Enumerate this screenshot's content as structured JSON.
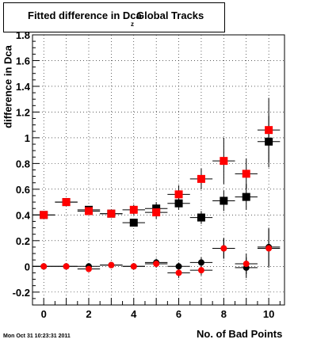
{
  "chart_data": {
    "type": "scatter",
    "title": "Fitted difference in Dca",
    "title_subscript": "z",
    "title_tail": "Global Tracks",
    "xlabel": "No. of Bad Points",
    "ylabel": "difference in Dca",
    "xlim": [
      -0.5,
      10.7
    ],
    "ylim": [
      -0.3,
      1.8
    ],
    "grid": true,
    "x_ticks": [
      0,
      2,
      4,
      6,
      8,
      10
    ],
    "y_ticks": [
      -0.2,
      0,
      0.2,
      0.4,
      0.6,
      0.8,
      1,
      1.2,
      1.4,
      1.6,
      1.8
    ],
    "y_tick_labels": [
      "-0.2",
      "0",
      "0.2",
      "0.4",
      "0.6",
      "0.8",
      "1",
      "1.2",
      "1.4",
      "1.6",
      "1.8"
    ],
    "series": [
      {
        "marker": "square",
        "color": "#000000",
        "points": [
          {
            "x": 0,
            "y": 0.4,
            "xerr": 0.5,
            "yerr": 0.02
          },
          {
            "x": 1,
            "y": 0.5,
            "xerr": 0.5,
            "yerr": 0.02
          },
          {
            "x": 2,
            "y": 0.44,
            "xerr": 0.5,
            "yerr": 0.02
          },
          {
            "x": 3,
            "y": 0.41,
            "xerr": 0.5,
            "yerr": 0.02
          },
          {
            "x": 4,
            "y": 0.34,
            "xerr": 0.5,
            "yerr": 0.03
          },
          {
            "x": 5,
            "y": 0.45,
            "xerr": 0.5,
            "yerr": 0.05
          },
          {
            "x": 6,
            "y": 0.49,
            "xerr": 0.5,
            "yerr": 0.05
          },
          {
            "x": 7,
            "y": 0.38,
            "xerr": 0.5,
            "yerr": 0.05
          },
          {
            "x": 8,
            "y": 0.51,
            "xerr": 0.5,
            "yerr": 0.08
          },
          {
            "x": 9,
            "y": 0.54,
            "xerr": 0.5,
            "yerr": 0.1
          },
          {
            "x": 10,
            "y": 0.97,
            "xerr": 0.5,
            "yerr": 0.2
          }
        ]
      },
      {
        "marker": "square",
        "color": "#ff0000",
        "points": [
          {
            "x": 0,
            "y": 0.4,
            "xerr": 0.5,
            "yerr": 0.02
          },
          {
            "x": 1,
            "y": 0.5,
            "xerr": 0.5,
            "yerr": 0.02
          },
          {
            "x": 2,
            "y": 0.43,
            "xerr": 0.5,
            "yerr": 0.02
          },
          {
            "x": 3,
            "y": 0.41,
            "xerr": 0.5,
            "yerr": 0.03
          },
          {
            "x": 4,
            "y": 0.44,
            "xerr": 0.5,
            "yerr": 0.04
          },
          {
            "x": 5,
            "y": 0.42,
            "xerr": 0.5,
            "yerr": 0.05
          },
          {
            "x": 6,
            "y": 0.56,
            "xerr": 0.5,
            "yerr": 0.07
          },
          {
            "x": 7,
            "y": 0.68,
            "xerr": 0.5,
            "yerr": 0.08
          },
          {
            "x": 8,
            "y": 0.82,
            "xerr": 0.5,
            "yerr": 0.18
          },
          {
            "x": 9,
            "y": 0.72,
            "xerr": 0.5,
            "yerr": 0.12
          },
          {
            "x": 10,
            "y": 1.06,
            "xerr": 0.5,
            "yerr": 0.25
          }
        ]
      },
      {
        "marker": "circle",
        "color": "#000000",
        "points": [
          {
            "x": 0,
            "y": 0.0,
            "xerr": 0.5,
            "yerr": 0.01
          },
          {
            "x": 1,
            "y": 0.0,
            "xerr": 0.5,
            "yerr": 0.01
          },
          {
            "x": 2,
            "y": 0.0,
            "xerr": 0.5,
            "yerr": 0.02
          },
          {
            "x": 3,
            "y": 0.01,
            "xerr": 0.5,
            "yerr": 0.02
          },
          {
            "x": 4,
            "y": 0.0,
            "xerr": 0.5,
            "yerr": 0.02
          },
          {
            "x": 5,
            "y": 0.03,
            "xerr": 0.5,
            "yerr": 0.03
          },
          {
            "x": 6,
            "y": 0.0,
            "xerr": 0.5,
            "yerr": 0.03
          },
          {
            "x": 7,
            "y": 0.03,
            "xerr": 0.5,
            "yerr": 0.04
          },
          {
            "x": 8,
            "y": 0.14,
            "xerr": 0.5,
            "yerr": 0.08
          },
          {
            "x": 9,
            "y": -0.01,
            "xerr": 0.5,
            "yerr": 0.08
          },
          {
            "x": 10,
            "y": 0.15,
            "xerr": 0.5,
            "yerr": 0.15
          }
        ]
      },
      {
        "marker": "circle",
        "color": "#ff0000",
        "points": [
          {
            "x": 0,
            "y": 0.0,
            "xerr": 0.5,
            "yerr": 0.01
          },
          {
            "x": 1,
            "y": 0.0,
            "xerr": 0.5,
            "yerr": 0.01
          },
          {
            "x": 2,
            "y": -0.02,
            "xerr": 0.5,
            "yerr": 0.02
          },
          {
            "x": 3,
            "y": 0.01,
            "xerr": 0.5,
            "yerr": 0.02
          },
          {
            "x": 4,
            "y": 0.0,
            "xerr": 0.5,
            "yerr": 0.02
          },
          {
            "x": 5,
            "y": 0.02,
            "xerr": 0.5,
            "yerr": 0.03
          },
          {
            "x": 6,
            "y": -0.05,
            "xerr": 0.5,
            "yerr": 0.04
          },
          {
            "x": 7,
            "y": -0.03,
            "xerr": 0.5,
            "yerr": 0.04
          },
          {
            "x": 8,
            "y": 0.14,
            "xerr": 0.5,
            "yerr": 0.08
          },
          {
            "x": 9,
            "y": 0.02,
            "xerr": 0.5,
            "yerr": 0.08
          },
          {
            "x": 10,
            "y": 0.14,
            "xerr": 0.5,
            "yerr": 0.15
          }
        ]
      }
    ]
  },
  "timestamp": "Mon Oct 31 10:23:31 2011"
}
